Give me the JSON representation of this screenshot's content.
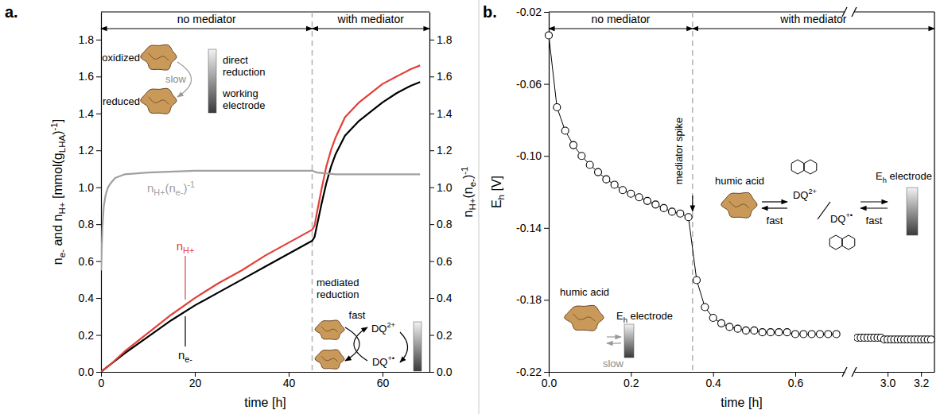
{
  "chart_data": [
    {
      "type": "line",
      "panel": "a.",
      "xlabel": "time [h]",
      "ylabel": "ne- and nH+ [mmol(gLHA)-1]",
      "y2label": "nH+(ne-)-1",
      "xlim": [
        0,
        70
      ],
      "xticks": [
        0,
        20,
        40,
        60
      ],
      "ylim": [
        0,
        1.95
      ],
      "yticks": [
        {
          "value": 0,
          "label": "0.0"
        },
        0.2,
        0.4,
        0.6,
        0.8,
        {
          "value": 1,
          "label": "1.0"
        },
        1.2,
        1.4,
        1.6,
        1.8
      ],
      "y2lim": [
        0,
        1.95
      ],
      "y2ticks": [
        {
          "value": 0,
          "label": "0.0"
        },
        0.2,
        0.4,
        0.6,
        0.8,
        {
          "value": 1,
          "label": "1.0"
        },
        1.2,
        1.4,
        1.6,
        1.8
      ],
      "mediator_time": 45,
      "annotations": [
        "no mediator",
        "with mediator",
        "oxidized",
        "direct reduction",
        "slow",
        "reduced",
        "working electrode",
        "mediated reduction",
        "fast",
        "DQ2+",
        "DQ+•"
      ],
      "series": [
        {
          "name": "ne-",
          "color": "#000000",
          "x": [
            0,
            2,
            5,
            10,
            15,
            20,
            25,
            30,
            35,
            40,
            45,
            45.5,
            46,
            47,
            48,
            49,
            50,
            52,
            55,
            58,
            60,
            63,
            66,
            68
          ],
          "values": [
            0,
            0.04,
            0.1,
            0.19,
            0.28,
            0.36,
            0.43,
            0.5,
            0.57,
            0.64,
            0.71,
            0.73,
            0.79,
            0.91,
            1.02,
            1.11,
            1.18,
            1.28,
            1.36,
            1.42,
            1.46,
            1.51,
            1.55,
            1.57
          ]
        },
        {
          "name": "nH+",
          "color": "#e2403a",
          "x": [
            0,
            2,
            5,
            10,
            15,
            20,
            25,
            30,
            35,
            40,
            45,
            45.5,
            46,
            47,
            48,
            49,
            50,
            52,
            55,
            58,
            60,
            63,
            66,
            68
          ],
          "values": [
            0,
            0.04,
            0.11,
            0.21,
            0.31,
            0.4,
            0.48,
            0.55,
            0.63,
            0.7,
            0.77,
            0.79,
            0.86,
            0.99,
            1.11,
            1.2,
            1.27,
            1.38,
            1.46,
            1.52,
            1.56,
            1.6,
            1.64,
            1.66
          ]
        },
        {
          "name": "nH+(ne-)-1",
          "color": "#a0a0a0",
          "axis": "y2",
          "x": [
            0,
            0.3,
            0.6,
            1,
            1.5,
            2,
            3,
            5,
            10,
            20,
            30,
            40,
            45,
            46,
            50,
            60,
            68
          ],
          "values": [
            0.55,
            0.78,
            0.9,
            0.96,
            1,
            1.02,
            1.05,
            1.07,
            1.08,
            1.09,
            1.09,
            1.09,
            1.09,
            1.08,
            1.07,
            1.07,
            1.07
          ]
        }
      ]
    },
    {
      "type": "line",
      "marker": "circle",
      "panel": "b.",
      "xlabel": "time [h]",
      "ylabel": "Eh [V]",
      "xlim": [
        0,
        3.28
      ],
      "axis_break": [
        0.72,
        2.8
      ],
      "xticks": [
        {
          "value": 0,
          "label": "0.0"
        },
        0.2,
        0.4,
        0.6,
        {
          "value": 3,
          "label": "3.0"
        },
        3.2
      ],
      "ylim": [
        -0.22,
        -0.02
      ],
      "yticks": [
        -0.02,
        -0.06,
        {
          "value": -0.1,
          "label": "-0.10"
        },
        -0.14,
        -0.18,
        -0.22
      ],
      "mediator_time": 0.35,
      "annotations": [
        "no mediator",
        "with mediator",
        "mediator spike",
        "humic acid",
        "DQ2+",
        "DQ+•",
        "fast",
        "fast",
        "Eh electrode",
        "humic acid",
        "Eh electrode",
        "slow"
      ],
      "series": [
        {
          "color": "#000000",
          "x": [
            0,
            0.02,
            0.04,
            0.06,
            0.08,
            0.1,
            0.12,
            0.14,
            0.16,
            0.18,
            0.2,
            0.22,
            0.24,
            0.26,
            0.28,
            0.3,
            0.32,
            0.34,
            0.36,
            0.38,
            0.4,
            0.42,
            0.44,
            0.46,
            0.48,
            0.5,
            0.52,
            0.54,
            0.56,
            0.58,
            0.6,
            0.62,
            0.64,
            0.66,
            0.68,
            0.7,
            2.82,
            2.84,
            2.86,
            2.88,
            2.9,
            2.92,
            2.94,
            2.96,
            2.98,
            3,
            3.02,
            3.04,
            3.06,
            3.08,
            3.1,
            3.12,
            3.14,
            3.16,
            3.18,
            3.2,
            3.22,
            3.24,
            3.26
          ],
          "values": [
            -0.033,
            -0.073,
            -0.086,
            -0.094,
            -0.1,
            -0.105,
            -0.109,
            -0.113,
            -0.116,
            -0.119,
            -0.121,
            -0.123,
            -0.125,
            -0.127,
            -0.129,
            -0.131,
            -0.132,
            -0.134,
            -0.169,
            -0.184,
            -0.19,
            -0.193,
            -0.195,
            -0.196,
            -0.197,
            -0.197,
            -0.198,
            -0.198,
            -0.198,
            -0.198,
            -0.199,
            -0.199,
            -0.199,
            -0.199,
            -0.199,
            -0.199,
            -0.201,
            -0.201,
            -0.201,
            -0.201,
            -0.201,
            -0.201,
            -0.201,
            -0.201,
            -0.202,
            -0.202,
            -0.202,
            -0.202,
            -0.202,
            -0.202,
            -0.202,
            -0.202,
            -0.202,
            -0.202,
            -0.202,
            -0.202,
            -0.202,
            -0.202,
            -0.202
          ]
        }
      ]
    }
  ]
}
